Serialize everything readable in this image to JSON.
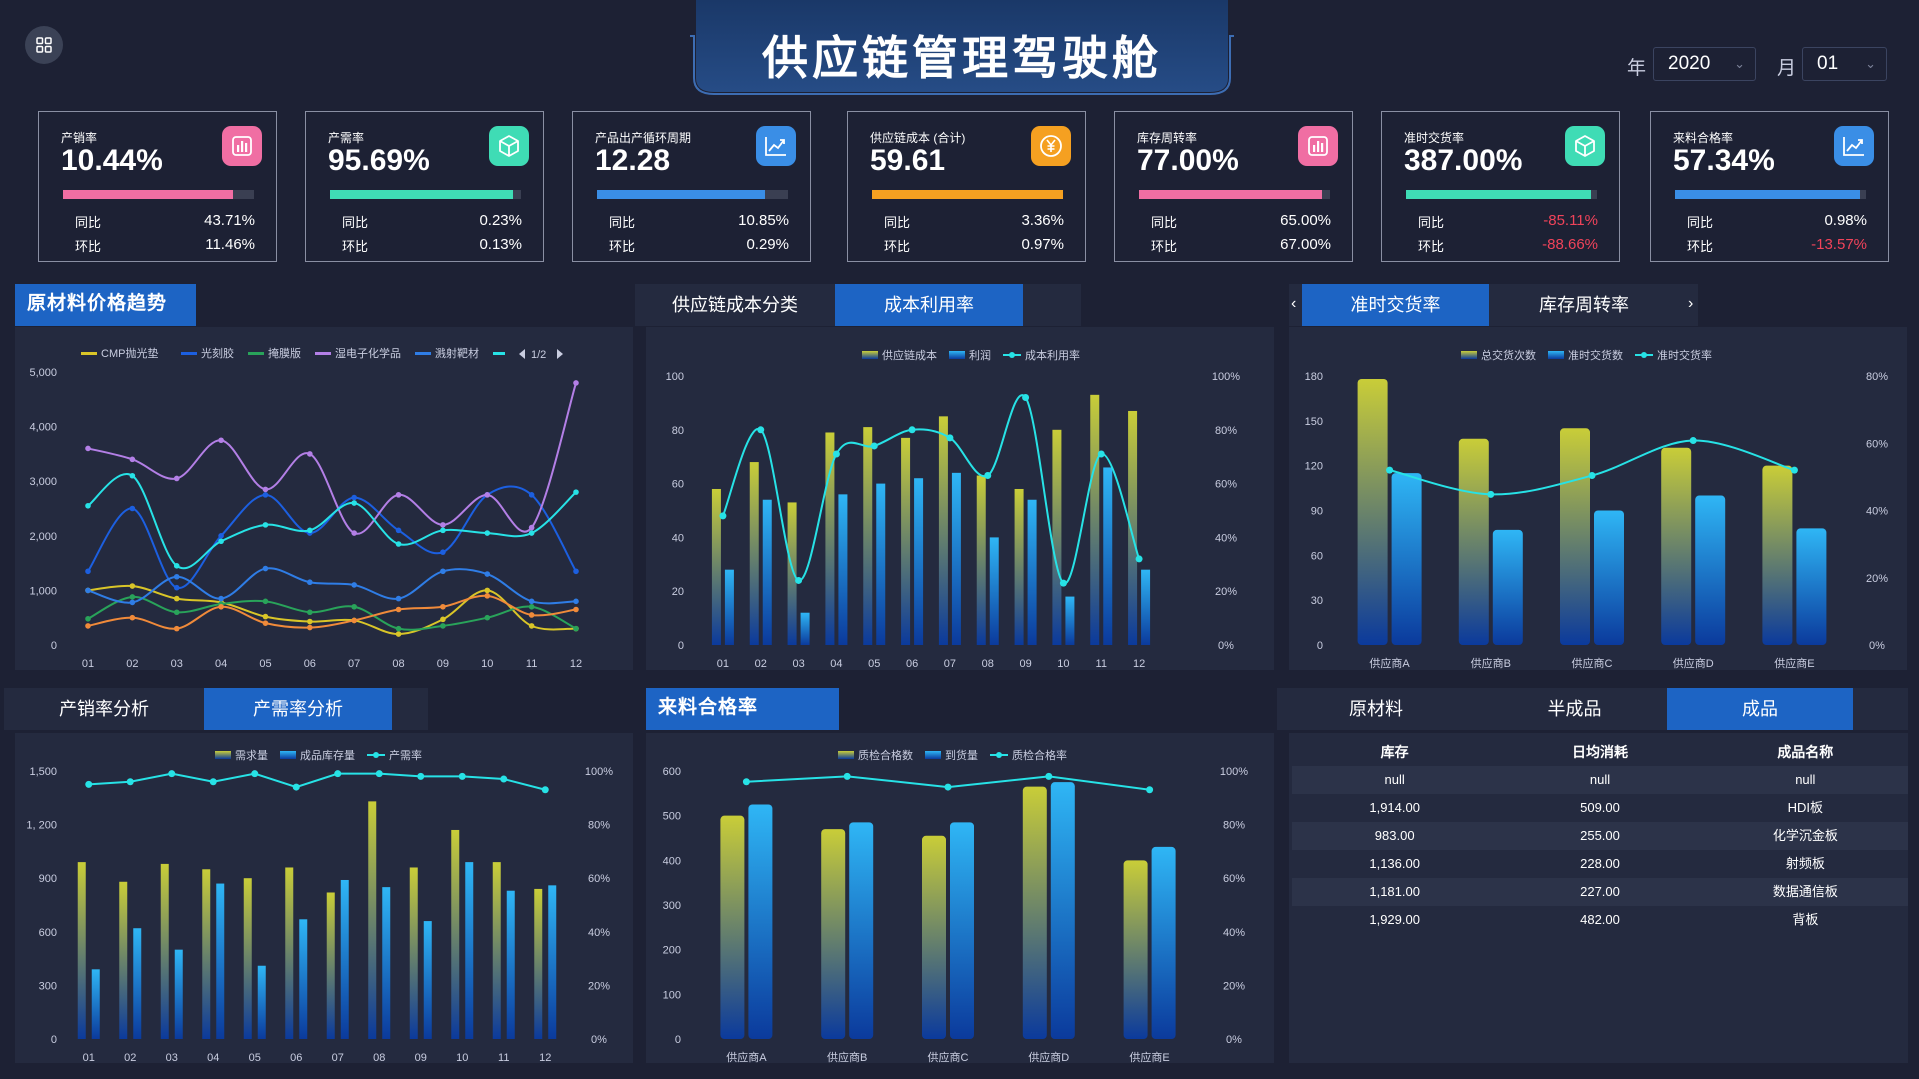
{
  "header": {
    "title": "供应链管理驾驶舱"
  },
  "filters": {
    "year_label": "年",
    "year": "2020",
    "month_label": "月",
    "month": "01"
  },
  "kpis": [
    {
      "name": "产销率",
      "value": "10.44%",
      "icon": "bar-chart-icon",
      "color": "#f06ea3",
      "progress": 0.89,
      "yoy_label": "同比",
      "yoy": "43.71%",
      "mom_label": "环比",
      "mom": "11.46%"
    },
    {
      "name": "产需率",
      "value": "95.69%",
      "icon": "cube-icon",
      "color": "#3fdcb5",
      "progress": 0.96,
      "yoy_label": "同比",
      "yoy": "0.23%",
      "mom_label": "环比",
      "mom": "0.13%"
    },
    {
      "name": "产品出产循环周期",
      "value": "12.28",
      "icon": "trend-chart-icon",
      "color": "#3a8ee6",
      "progress": 0.88,
      "yoy_label": "同比",
      "yoy": "10.85%",
      "mom_label": "环比",
      "mom": "0.29%"
    },
    {
      "name": "供应链成本 (合计)",
      "value": "59.61",
      "icon": "yuan-icon",
      "color": "#f5a021",
      "progress": 1.0,
      "yoy_label": "同比",
      "yoy": "3.36%",
      "mom_label": "环比",
      "mom": "0.97%"
    },
    {
      "name": "库存周转率",
      "value": "77.00%",
      "icon": "bar-chart-icon",
      "color": "#f06ea3",
      "progress": 0.96,
      "yoy_label": "同比",
      "yoy": "65.00%",
      "mom_label": "环比",
      "mom": "67.00%"
    },
    {
      "name": "准时交货率",
      "value": "387.00%",
      "icon": "cube-icon",
      "color": "#3fdcb5",
      "progress": 0.97,
      "yoy_label": "同比",
      "yoy": "-85.11%",
      "mom_label": "环比",
      "mom": "-88.66%"
    },
    {
      "name": "来料合格率",
      "value": "57.34%",
      "icon": "trend-chart-icon",
      "color": "#3a8ee6",
      "progress": 0.97,
      "yoy_label": "同比",
      "yoy": "0.98%",
      "mom_label": "环比",
      "mom": "-13.57%"
    }
  ],
  "sections": {
    "raw_price": "原材料价格趋势",
    "cost_tabs": [
      "供应链成本分类",
      "成本利用率"
    ],
    "delivery_tabs": [
      "准时交货率",
      "库存周转率"
    ],
    "prod_tabs": [
      "产销率分析",
      "产需率分析"
    ],
    "incoming": "来料合格率",
    "stock_tabs": [
      "原材料",
      "半成品",
      "成品"
    ]
  },
  "colors": {
    "yellow": "#c9cd38",
    "blue": "#2ea8f0",
    "cyan": "#27e2e6",
    "accent": "#1d64c4"
  },
  "chart_data": [
    {
      "type": "line",
      "title": "原材料价格趋势",
      "categories": [
        "01",
        "02",
        "03",
        "04",
        "05",
        "06",
        "07",
        "08",
        "09",
        "10",
        "11",
        "12"
      ],
      "ylim": [
        0,
        5000
      ],
      "yticks": [
        "5,000",
        "4,000",
        "3,000",
        "2,000",
        "1,000",
        "0"
      ],
      "legend_page": "1/2",
      "series": [
        {
          "name": "CMP抛光垫",
          "color": "#d9c528",
          "values": [
            1000,
            1080,
            850,
            780,
            520,
            430,
            450,
            200,
            470,
            1000,
            350,
            300
          ]
        },
        {
          "name": "光刻胶",
          "color": "#1c5fe0",
          "values": [
            1350,
            2500,
            1050,
            2000,
            2750,
            2050,
            2700,
            2100,
            1700,
            2750,
            2750,
            1350
          ]
        },
        {
          "name": "掩膜版",
          "color": "#29a35a",
          "values": [
            480,
            880,
            600,
            750,
            800,
            600,
            700,
            300,
            350,
            500,
            700,
            300
          ]
        },
        {
          "name": "湿电子化学品",
          "color": "#b37fe6",
          "values": [
            3600,
            3400,
            3050,
            3750,
            2850,
            3500,
            2050,
            2750,
            2200,
            2750,
            2150,
            4800
          ]
        },
        {
          "name": "溅射靶材",
          "color": "#2f7de6",
          "values": [
            1000,
            780,
            1250,
            850,
            1400,
            1150,
            1100,
            850,
            1350,
            1300,
            800,
            800
          ]
        },
        {
          "name": "",
          "color": "#27e2e6",
          "values": [
            2550,
            3100,
            1450,
            1900,
            2200,
            2100,
            2600,
            1850,
            2100,
            2050,
            2050,
            2800
          ]
        },
        {
          "name": "",
          "color": "#f08a3a",
          "values": [
            350,
            500,
            300,
            700,
            400,
            320,
            450,
            650,
            700,
            900,
            550,
            650
          ]
        }
      ]
    },
    {
      "type": "bar",
      "title": "成本利用率",
      "categories": [
        "01",
        "02",
        "03",
        "04",
        "05",
        "06",
        "07",
        "08",
        "09",
        "10",
        "11",
        "12"
      ],
      "ylim": [
        0,
        100
      ],
      "yticks": [
        "100",
        "80",
        "60",
        "40",
        "20",
        "0"
      ],
      "y2ticks": [
        "100%",
        "80%",
        "60%",
        "40%",
        "20%",
        "0%"
      ],
      "series": [
        {
          "name": "供应链成本",
          "kind": "bar",
          "values": [
            58,
            68,
            53,
            79,
            81,
            77,
            85,
            63,
            58,
            80,
            93,
            87
          ]
        },
        {
          "name": "利润",
          "kind": "bar",
          "values": [
            28,
            54,
            12,
            56,
            60,
            62,
            64,
            40,
            54,
            18,
            66,
            28
          ]
        },
        {
          "name": "成本利用率",
          "kind": "line",
          "values": [
            48,
            80,
            24,
            71,
            74,
            80,
            77,
            63,
            92,
            23,
            71,
            32
          ]
        }
      ]
    },
    {
      "type": "bar",
      "title": "准时交货率",
      "categories": [
        "供应商A",
        "供应商B",
        "供应商C",
        "供应商D",
        "供应商E"
      ],
      "ylim": [
        0,
        180
      ],
      "yticks": [
        "180",
        "150",
        "120",
        "90",
        "60",
        "30",
        "0"
      ],
      "y2ticks": [
        "80%",
        "60%",
        "40%",
        "20%",
        "0%"
      ],
      "series": [
        {
          "name": "总交货次数",
          "kind": "bar",
          "values": [
            178,
            138,
            145,
            132,
            120
          ]
        },
        {
          "name": "准时交货数",
          "kind": "bar",
          "values": [
            115,
            77,
            90,
            100,
            78
          ]
        },
        {
          "name": "准时交货率",
          "kind": "line",
          "values": [
            65,
            56,
            63,
            76,
            65
          ]
        }
      ]
    },
    {
      "type": "bar",
      "title": "产需率分析",
      "categories": [
        "01",
        "02",
        "03",
        "04",
        "05",
        "06",
        "07",
        "08",
        "09",
        "10",
        "11",
        "12"
      ],
      "ylim": [
        0,
        1500
      ],
      "yticks": [
        "1,500",
        "1, 200",
        "900",
        "600",
        "300",
        "0"
      ],
      "y2ticks": [
        "100%",
        "80%",
        "60%",
        "40%",
        "20%",
        "0%"
      ],
      "series": [
        {
          "name": "需求量",
          "kind": "bar",
          "values": [
            990,
            880,
            980,
            950,
            900,
            960,
            820,
            1330,
            960,
            1170,
            990,
            840
          ]
        },
        {
          "name": "成品库存量",
          "kind": "bar",
          "values": [
            390,
            620,
            500,
            870,
            410,
            670,
            890,
            850,
            660,
            990,
            830,
            860
          ]
        },
        {
          "name": "产需率",
          "kind": "line",
          "values": [
            95,
            96,
            99,
            96,
            99,
            94,
            99,
            99,
            98,
            98,
            97,
            93
          ]
        }
      ]
    },
    {
      "type": "bar",
      "title": "来料合格率",
      "categories": [
        "供应商A",
        "供应商B",
        "供应商C",
        "供应商D",
        "供应商E"
      ],
      "ylim": [
        0,
        600
      ],
      "yticks": [
        "600",
        "500",
        "400",
        "300",
        "200",
        "100",
        "0"
      ],
      "y2ticks": [
        "100%",
        "80%",
        "60%",
        "40%",
        "20%",
        "0%"
      ],
      "series": [
        {
          "name": "质检合格数",
          "kind": "bar",
          "values": [
            500,
            470,
            455,
            565,
            400
          ]
        },
        {
          "name": "到货量",
          "kind": "bar",
          "values": [
            525,
            485,
            485,
            575,
            430
          ]
        },
        {
          "name": "质检合格率",
          "kind": "line",
          "values": [
            96,
            98,
            94,
            98,
            93
          ]
        }
      ]
    }
  ],
  "stock_table": {
    "headers": [
      "库存",
      "日均消耗",
      "成品名称"
    ],
    "rows": [
      [
        "null",
        "null",
        "null"
      ],
      [
        "1,914.00",
        "509.00",
        "HDI板"
      ],
      [
        "983.00",
        "255.00",
        "化学沉金板"
      ],
      [
        "1,136.00",
        "228.00",
        "射频板"
      ],
      [
        "1,181.00",
        "227.00",
        "数据通信板"
      ],
      [
        "1,929.00",
        "482.00",
        "背板"
      ]
    ]
  }
}
